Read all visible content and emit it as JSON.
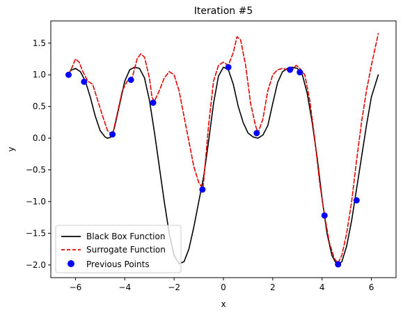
{
  "chart_data": {
    "type": "line",
    "title": "Iteration #5",
    "xlabel": "x",
    "ylabel": "y",
    "xlim": [
      -7.0,
      7.0
    ],
    "ylim": [
      -2.2,
      1.85
    ],
    "xticks": [
      -6,
      -4,
      -2,
      0,
      2,
      4,
      6
    ],
    "yticks": [
      -2.0,
      -1.5,
      -1.0,
      -0.5,
      0.0,
      0.5,
      1.0,
      1.5
    ],
    "xtick_labels": [
      "−6",
      "−4",
      "−2",
      "0",
      "2",
      "4",
      "6"
    ],
    "ytick_labels": [
      "−2.0",
      "−1.5",
      "−1.0",
      "−0.5",
      "0.0",
      "0.5",
      "1.0",
      "1.5"
    ],
    "grid": false,
    "legend_position": "lower-left",
    "series": [
      {
        "name": "Black Box Function",
        "style": "solid",
        "color": "#000000",
        "x": [
          -6.28,
          -6.2,
          -6.0,
          -5.8,
          -5.6,
          -5.4,
          -5.2,
          -5.0,
          -4.8,
          -4.7,
          -4.6,
          -4.5,
          -4.4,
          -4.2,
          -4.0,
          -3.8,
          -3.6,
          -3.4,
          -3.2,
          -3.0,
          -2.8,
          -2.6,
          -2.4,
          -2.2,
          -2.0,
          -1.8,
          -1.6,
          -1.4,
          -1.2,
          -1.0,
          -0.8,
          -0.6,
          -0.4,
          -0.2,
          0.0,
          0.2,
          0.4,
          0.6,
          0.8,
          1.0,
          1.2,
          1.4,
          1.6,
          1.8,
          2.0,
          2.2,
          2.4,
          2.6,
          2.8,
          3.0,
          3.2,
          3.4,
          3.6,
          3.8,
          4.0,
          4.2,
          4.4,
          4.6,
          4.8,
          5.0,
          5.2,
          5.4,
          5.6,
          5.8,
          6.0,
          6.28
        ],
        "y": [
          1.0,
          1.07,
          1.1,
          1.05,
          0.9,
          0.65,
          0.35,
          0.12,
          0.02,
          0.0,
          0.01,
          0.05,
          0.2,
          0.55,
          0.9,
          1.08,
          1.12,
          1.1,
          0.95,
          0.6,
          0.1,
          -0.45,
          -1.0,
          -1.5,
          -1.85,
          -1.98,
          -1.95,
          -1.75,
          -1.4,
          -1.0,
          -0.6,
          -0.05,
          0.55,
          0.98,
          1.12,
          1.08,
          0.85,
          0.5,
          0.25,
          0.08,
          0.02,
          0.0,
          0.05,
          0.2,
          0.55,
          0.88,
          1.05,
          1.1,
          1.12,
          1.1,
          1.0,
          0.7,
          0.25,
          -0.3,
          -0.95,
          -1.5,
          -1.85,
          -2.0,
          -1.95,
          -1.7,
          -1.3,
          -0.8,
          -0.3,
          0.2,
          0.65,
          1.0
        ]
      },
      {
        "name": "Surrogate Function",
        "style": "dashed",
        "color": "#e00000",
        "x": [
          -6.28,
          -6.1,
          -6.0,
          -5.85,
          -5.7,
          -5.5,
          -5.3,
          -5.1,
          -4.9,
          -4.7,
          -4.5,
          -4.3,
          -4.1,
          -3.9,
          -3.7,
          -3.5,
          -3.35,
          -3.2,
          -3.0,
          -2.9,
          -2.8,
          -2.6,
          -2.4,
          -2.2,
          -2.0,
          -1.8,
          -1.6,
          -1.4,
          -1.2,
          -1.0,
          -0.83,
          -0.6,
          -0.4,
          -0.2,
          0.0,
          0.2,
          0.4,
          0.55,
          0.7,
          0.9,
          1.1,
          1.3,
          1.4,
          1.6,
          1.8,
          2.0,
          2.2,
          2.4,
          2.6,
          2.8,
          2.95,
          3.1,
          3.3,
          3.5,
          3.7,
          3.9,
          4.1,
          4.3,
          4.5,
          4.65,
          4.8,
          5.0,
          5.2,
          5.4,
          5.6,
          5.8,
          6.0,
          6.28
        ],
        "y": [
          1.0,
          1.15,
          1.25,
          1.2,
          1.05,
          0.9,
          0.85,
          0.6,
          0.35,
          0.12,
          0.05,
          0.4,
          0.75,
          0.9,
          0.95,
          1.25,
          1.33,
          1.28,
          0.95,
          0.65,
          0.58,
          0.75,
          0.95,
          1.05,
          1.0,
          0.75,
          0.35,
          -0.05,
          -0.45,
          -0.7,
          -0.8,
          0.2,
          0.9,
          1.15,
          1.2,
          1.15,
          1.35,
          1.6,
          1.55,
          1.15,
          0.55,
          0.2,
          0.08,
          0.3,
          0.75,
          1.0,
          1.08,
          1.1,
          1.08,
          1.08,
          1.15,
          1.1,
          1.0,
          0.6,
          0.0,
          -0.7,
          -1.22,
          -1.65,
          -1.9,
          -1.97,
          -1.85,
          -1.5,
          -1.0,
          -0.35,
          0.25,
          0.75,
          1.15,
          1.65
        ]
      }
    ],
    "points": {
      "name": "Previous Points",
      "color": "#0000ff",
      "x": [
        -6.28,
        -5.65,
        -4.5,
        -3.75,
        -2.85,
        -0.85,
        0.2,
        1.35,
        2.7,
        3.1,
        4.1,
        4.65,
        5.4
      ],
      "y": [
        1.0,
        0.89,
        0.06,
        0.92,
        0.56,
        -0.81,
        1.12,
        0.08,
        1.08,
        1.04,
        -1.22,
        -1.99,
        -0.98
      ]
    }
  }
}
